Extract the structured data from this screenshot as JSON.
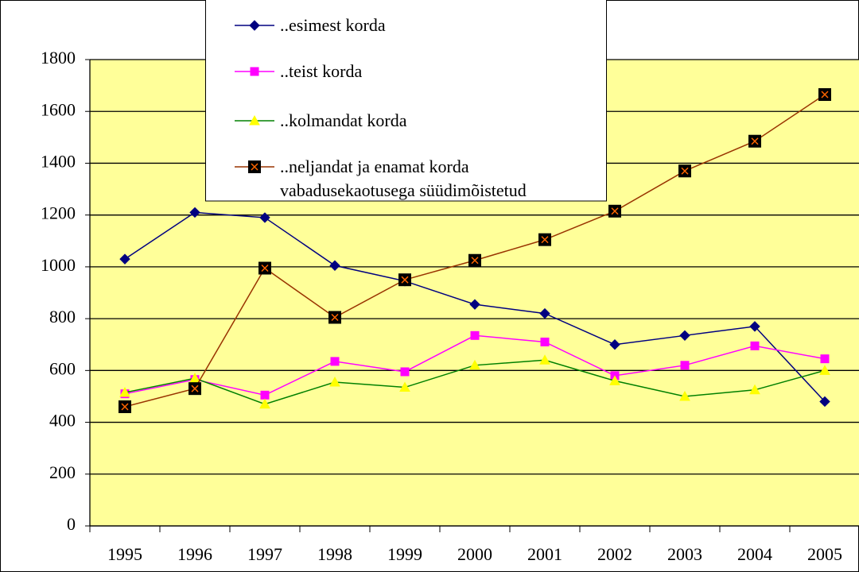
{
  "chart_data": {
    "type": "line",
    "categories": [
      "1995",
      "1996",
      "1997",
      "1998",
      "1999",
      "2000",
      "2001",
      "2002",
      "2003",
      "2004",
      "2005"
    ],
    "series": [
      {
        "name": "..esimest korda",
        "color": "#000080",
        "marker": "diamond",
        "marker_fill": "#000080",
        "values": [
          1030,
          1210,
          1190,
          1005,
          945,
          855,
          820,
          700,
          735,
          770,
          480
        ]
      },
      {
        "name": "..teist korda",
        "color": "#ff00ff",
        "marker": "square",
        "marker_fill": "#ff00ff",
        "values": [
          510,
          565,
          505,
          635,
          595,
          735,
          710,
          580,
          620,
          695,
          645
        ]
      },
      {
        "name": "..kolmandat korda",
        "color": "#008000",
        "marker": "triangle",
        "marker_fill": "#ffff00",
        "values": [
          515,
          570,
          470,
          555,
          535,
          620,
          640,
          560,
          500,
          525,
          600
        ]
      },
      {
        "name": "..neljandat ja enamat korda vabadusekaotusega süüdimõistetud",
        "color": "#993300",
        "marker": "boxx",
        "marker_fill": "#000000",
        "values": [
          460,
          530,
          995,
          805,
          950,
          1025,
          1105,
          1215,
          1370,
          1485,
          1665
        ]
      }
    ],
    "ylim": [
      0,
      1800
    ],
    "yticks": [
      0,
      200,
      400,
      600,
      800,
      1000,
      1200,
      1400,
      1600,
      1800
    ],
    "grid": true,
    "plot_background": "#ffff99"
  }
}
